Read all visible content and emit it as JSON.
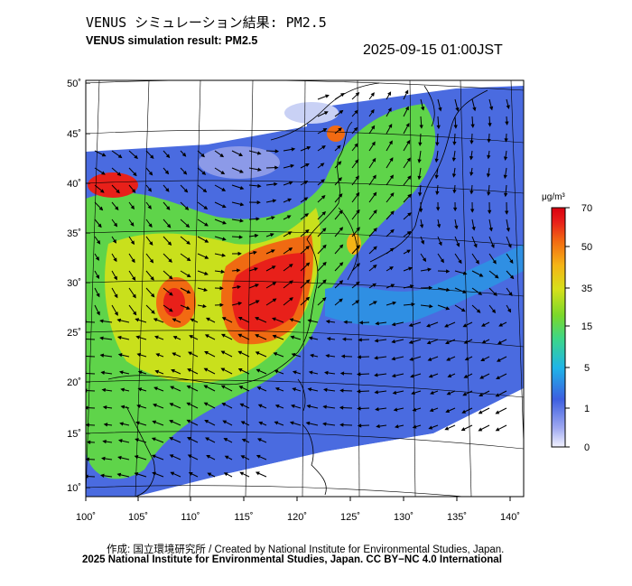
{
  "header": {
    "title_jp": "VENUS シミュレーション結果: PM2.5",
    "title_en": "VENUS simulation result: PM2.5",
    "timestamp": "2025-09-15 01:00JST"
  },
  "map": {
    "lat_labels": [
      "50˚",
      "45˚",
      "40˚",
      "35˚",
      "30˚",
      "25˚",
      "20˚",
      "15˚",
      "10˚"
    ],
    "lon_labels": [
      "100˚",
      "105˚",
      "110˚",
      "115˚",
      "120˚",
      "125˚",
      "130˚",
      "135˚",
      "140˚"
    ],
    "lat_values": [
      50,
      45,
      40,
      35,
      30,
      25,
      20,
      15,
      10
    ],
    "lon_values": [
      100,
      105,
      110,
      115,
      120,
      125,
      130,
      135,
      140
    ],
    "lat_range": [
      10,
      50
    ],
    "lon_range": [
      100,
      141
    ],
    "features": [
      "pm2.5-concentration-field",
      "wind-vectors",
      "coastlines",
      "graticule"
    ]
  },
  "colorbar": {
    "unit": "μg/m³",
    "tick_labels": [
      "70",
      "50",
      "35",
      "15",
      "5",
      "1",
      "0"
    ],
    "tick_values": [
      70,
      50,
      35,
      15,
      5,
      1,
      0
    ],
    "colors": [
      "#f2f2ff",
      "#9ea8f0",
      "#3d5fe0",
      "#1fb4e8",
      "#3cd68a",
      "#7ad82a",
      "#d7e01a",
      "#f5b416",
      "#f26a12",
      "#e8201a",
      "#d8000f"
    ]
  },
  "footer": {
    "credit_line": "作成: 国立環境研究所 / Created by National Institute for Environmental Studies, Japan.",
    "license_line": "2025 National Institute for Environmental Studies, Japan. CC BY−NC 4.0 International"
  }
}
